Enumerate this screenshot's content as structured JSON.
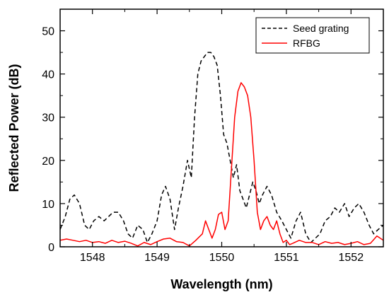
{
  "chart_data": {
    "type": "line",
    "title": "",
    "xlabel": "Wavelength (nm)",
    "ylabel": "Reflected Power (dB)",
    "xlim": [
      1547.5,
      1552.5
    ],
    "ylim": [
      0,
      55
    ],
    "xticks": [
      1548,
      1549,
      1550,
      1551,
      1552
    ],
    "xtick_labels": [
      "1548",
      "1549",
      "1550",
      "1551",
      "1552"
    ],
    "yticks": [
      0,
      10,
      20,
      30,
      40,
      50
    ],
    "ytick_labels": [
      "0",
      "10",
      "20",
      "30",
      "40",
      "50"
    ],
    "grid": false,
    "legend_position": "top-right",
    "series": [
      {
        "name": "Seed grating",
        "color": "#000000",
        "style": "dashed",
        "x": [
          1547.5,
          1547.58,
          1547.65,
          1547.72,
          1547.8,
          1547.88,
          1547.95,
          1548.02,
          1548.1,
          1548.18,
          1548.25,
          1548.32,
          1548.4,
          1548.48,
          1548.55,
          1548.62,
          1548.7,
          1548.78,
          1548.85,
          1548.92,
          1549.0,
          1549.07,
          1549.13,
          1549.2,
          1549.27,
          1549.33,
          1549.4,
          1549.47,
          1549.53,
          1549.58,
          1549.63,
          1549.68,
          1549.73,
          1549.78,
          1549.83,
          1549.88,
          1549.93,
          1549.98,
          1550.03,
          1550.08,
          1550.13,
          1550.18,
          1550.23,
          1550.28,
          1550.33,
          1550.38,
          1550.43,
          1550.48,
          1550.53,
          1550.58,
          1550.63,
          1550.7,
          1550.77,
          1550.85,
          1550.93,
          1551.0,
          1551.07,
          1551.15,
          1551.22,
          1551.3,
          1551.38,
          1551.45,
          1551.52,
          1551.6,
          1551.68,
          1551.75,
          1551.82,
          1551.9,
          1551.97,
          1552.05,
          1552.12,
          1552.2,
          1552.28,
          1552.35,
          1552.42,
          1552.5
        ],
        "y": [
          4,
          7,
          11,
          12,
          10,
          5,
          4,
          6,
          7,
          6,
          7,
          8,
          8,
          6,
          3,
          2,
          5,
          4,
          1,
          3,
          6,
          12,
          14,
          11,
          4,
          9,
          14,
          20,
          16,
          30,
          40,
          43,
          44,
          45,
          45,
          44,
          42,
          35,
          26,
          24,
          20,
          16,
          19,
          13,
          11,
          9,
          12,
          15,
          13,
          10,
          12,
          14,
          12,
          8,
          6,
          4,
          2,
          6,
          8,
          3,
          1,
          2,
          3,
          6,
          7,
          9,
          8,
          10,
          7,
          9,
          10,
          8,
          5,
          3,
          4,
          5
        ]
      },
      {
        "name": "RFBG",
        "color": "#ff0000",
        "style": "solid",
        "x": [
          1547.5,
          1547.6,
          1547.7,
          1547.8,
          1547.9,
          1548.0,
          1548.1,
          1548.2,
          1548.3,
          1548.4,
          1548.5,
          1548.6,
          1548.7,
          1548.8,
          1548.9,
          1549.0,
          1549.1,
          1549.2,
          1549.3,
          1549.4,
          1549.5,
          1549.6,
          1549.7,
          1549.75,
          1549.8,
          1549.85,
          1549.9,
          1549.95,
          1550.0,
          1550.05,
          1550.1,
          1550.15,
          1550.2,
          1550.25,
          1550.3,
          1550.35,
          1550.4,
          1550.45,
          1550.5,
          1550.55,
          1550.6,
          1550.65,
          1550.7,
          1550.75,
          1550.8,
          1550.85,
          1550.9,
          1550.95,
          1551.0,
          1551.05,
          1551.1,
          1551.2,
          1551.3,
          1551.4,
          1551.5,
          1551.6,
          1551.7,
          1551.8,
          1551.9,
          1552.0,
          1552.1,
          1552.2,
          1552.3,
          1552.4,
          1552.5
        ],
        "y": [
          1.5,
          1.8,
          1.5,
          1.2,
          1.5,
          1.0,
          1.2,
          0.8,
          1.5,
          1.0,
          1.3,
          0.8,
          0.2,
          1.0,
          0.5,
          1.2,
          1.8,
          2.0,
          1.2,
          1.0,
          0.2,
          1.5,
          3.0,
          6.0,
          4.0,
          2.0,
          4.0,
          7.5,
          8.0,
          4.0,
          6.0,
          18.0,
          30.0,
          36.0,
          38.0,
          37.0,
          35.0,
          30.0,
          20.0,
          8.0,
          4.0,
          6.0,
          7.0,
          5.0,
          4.0,
          6.0,
          3.0,
          1.0,
          1.5,
          0.5,
          0.8,
          1.5,
          1.0,
          1.0,
          0.5,
          1.2,
          0.8,
          1.0,
          0.5,
          0.8,
          1.2,
          0.5,
          0.8,
          2.5,
          1.5
        ]
      }
    ]
  }
}
